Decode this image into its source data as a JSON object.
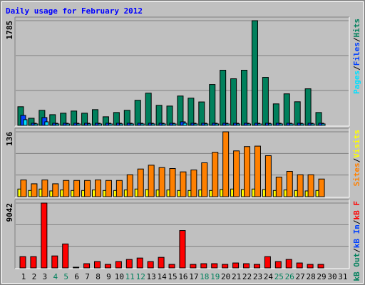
{
  "chart_data": {
    "type": "bar",
    "title": "Daily usage for February 2012",
    "categories": [
      "1",
      "2",
      "3",
      "4",
      "5",
      "6",
      "7",
      "8",
      "9",
      "10",
      "11",
      "12",
      "13",
      "14",
      "15",
      "16",
      "17",
      "18",
      "19",
      "20",
      "21",
      "22",
      "23",
      "24",
      "25",
      "26",
      "27",
      "28",
      "29",
      "30",
      "31"
    ],
    "weekend_days": [
      "4",
      "5",
      "11",
      "12",
      "18",
      "19",
      "25",
      "26"
    ],
    "weekday_color": "#000000",
    "weekend_color": "#00805c",
    "separator": "/",
    "grid_divisions": 3,
    "panels": [
      {
        "ylim": [
          0,
          1785
        ],
        "yticks": [
          1785
        ],
        "series": [
          {
            "name": "Hits",
            "color": "#00805c",
            "values": [
              318,
              122,
              257,
              183,
              208,
              245,
              208,
              269,
              147,
              220,
              257,
              428,
              550,
              342,
              330,
              501,
              465,
              400,
              697,
              941,
              795,
              941,
              1785,
              819,
              367,
              538,
              403,
              624,
              220
            ]
          },
          {
            "name": "Files",
            "color": "#0040ff",
            "values": [
              171,
              37,
              134,
              37,
              37,
              37,
              37,
              37,
              37,
              37,
              37,
              37,
              37,
              37,
              37,
              61,
              37,
              37,
              37,
              37,
              37,
              37,
              37,
              37,
              37,
              37,
              37,
              37,
              37
            ]
          },
          {
            "name": "Pages",
            "color": "#00e0ff",
            "values": [
              98,
              25,
              61,
              25,
              25,
              25,
              25,
              25,
              25,
              25,
              25,
              25,
              25,
              25,
              25,
              37,
              25,
              25,
              25,
              25,
              25,
              25,
              25,
              25,
              25,
              25,
              25,
              25,
              25
            ]
          }
        ]
      },
      {
        "ylim": [
          0,
          136
        ],
        "yticks": [
          136
        ],
        "series": [
          {
            "name": "Visits",
            "color": "#ffff00",
            "values": [
              16,
              13,
              16,
              12,
              14,
              13,
              13,
              14,
              13,
              13,
              14,
              16,
              15,
              14,
              14,
              13,
              13,
              14,
              13,
              15,
              16,
              15,
              16,
              15,
              13,
              14,
              13,
              12,
              13
            ]
          },
          {
            "name": "Sites",
            "color": "#ff8000",
            "values": [
              35,
              27,
              35,
              27,
              34,
              34,
              34,
              35,
              34,
              34,
              46,
              58,
              66,
              61,
              59,
              52,
              56,
              71,
              93,
              136,
              96,
              105,
              106,
              86,
              41,
              53,
              46,
              46,
              37
            ]
          }
        ]
      },
      {
        "ylim": [
          0,
          9042
        ],
        "yticks": [
          9042
        ],
        "series": [
          {
            "name": "kB F",
            "color": "#ff0000",
            "values": [
              1573,
              1573,
              9042,
              1671,
              3341,
              98,
              590,
              885,
              491,
              885,
              1180,
              1376,
              885,
              1474,
              491,
              5209,
              491,
              590,
              590,
              491,
              688,
              590,
              491,
              1573,
              885,
              1180,
              688,
              491,
              491
            ]
          },
          {
            "name": "kB In",
            "color": "#0040ff"
          },
          {
            "name": "kB Out",
            "color": "#00805c"
          }
        ]
      }
    ]
  }
}
